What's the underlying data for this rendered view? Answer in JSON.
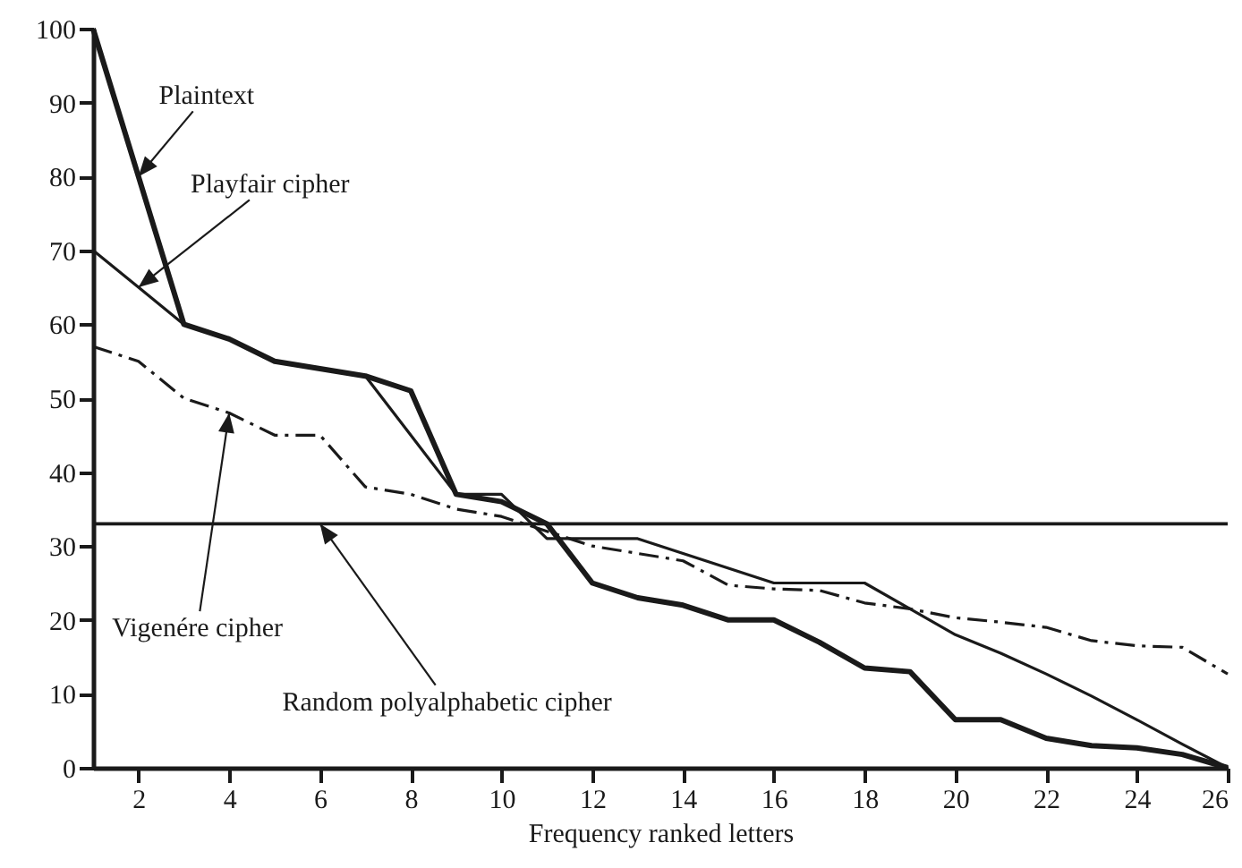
{
  "chart_data": {
    "type": "line",
    "xlabel": "Frequency ranked letters",
    "x": [
      1,
      2,
      3,
      4,
      5,
      6,
      7,
      8,
      9,
      10,
      11,
      12,
      13,
      14,
      15,
      16,
      17,
      18,
      19,
      20,
      21,
      22,
      23,
      24,
      25,
      26
    ],
    "series": [
      {
        "color": "#1a1a1a",
        "line_style": "solid",
        "values": [
          100,
          80,
          60,
          58,
          55,
          54,
          53,
          51,
          37,
          36,
          33,
          25,
          23,
          22,
          20,
          20,
          17,
          13.5,
          13,
          6.5,
          6.5,
          4,
          3,
          2.7,
          1.8,
          0
        ]
      },
      {
        "color": "#1a1a1a",
        "line_style": "solid",
        "values": [
          70,
          65,
          60,
          58,
          55,
          54,
          53,
          45,
          37,
          37,
          31,
          31,
          31,
          29,
          27,
          25,
          25,
          25,
          21.5,
          18,
          15.5,
          12.7,
          9.7,
          6.5,
          3.2,
          0
        ]
      },
      {
        "color": "#1a1a1a",
        "line_style": "dashed",
        "values": [
          57,
          55,
          50,
          48,
          45,
          45,
          38,
          37,
          35,
          34,
          32,
          30,
          29,
          28,
          24.7,
          24.2,
          24,
          22.3,
          21.5,
          20.3,
          19.7,
          19,
          17.2,
          16.5,
          16.3,
          12.7
        ]
      },
      {
        "color": "#1a1a1a",
        "line_style": "solid",
        "values": [
          33,
          33,
          33,
          33,
          33,
          33,
          33,
          33,
          33,
          33,
          33,
          33,
          33,
          33,
          33,
          33,
          33,
          33,
          33,
          33,
          33,
          33,
          33,
          33,
          33,
          33
        ]
      }
    ],
    "annotations": [
      {
        "text": "Plaintext",
        "x": 2,
        "y": 80
      },
      {
        "text": "Playfair cipher",
        "x": 2,
        "y": 65
      },
      {
        "text": "Vigenére cipher",
        "x": 4,
        "y": 48
      },
      {
        "text": "Random polyalphabetic cipher",
        "x": 6,
        "y": 33
      }
    ],
    "xlim": [
      1,
      26
    ],
    "xticks": [
      2,
      4,
      6,
      8,
      10,
      12,
      14,
      16,
      18,
      20,
      22,
      24,
      26
    ],
    "ylim": [
      0,
      100
    ],
    "yticks": [
      0,
      10,
      20,
      30,
      40,
      50,
      60,
      70,
      80,
      90,
      100
    ],
    "marker": "none"
  }
}
